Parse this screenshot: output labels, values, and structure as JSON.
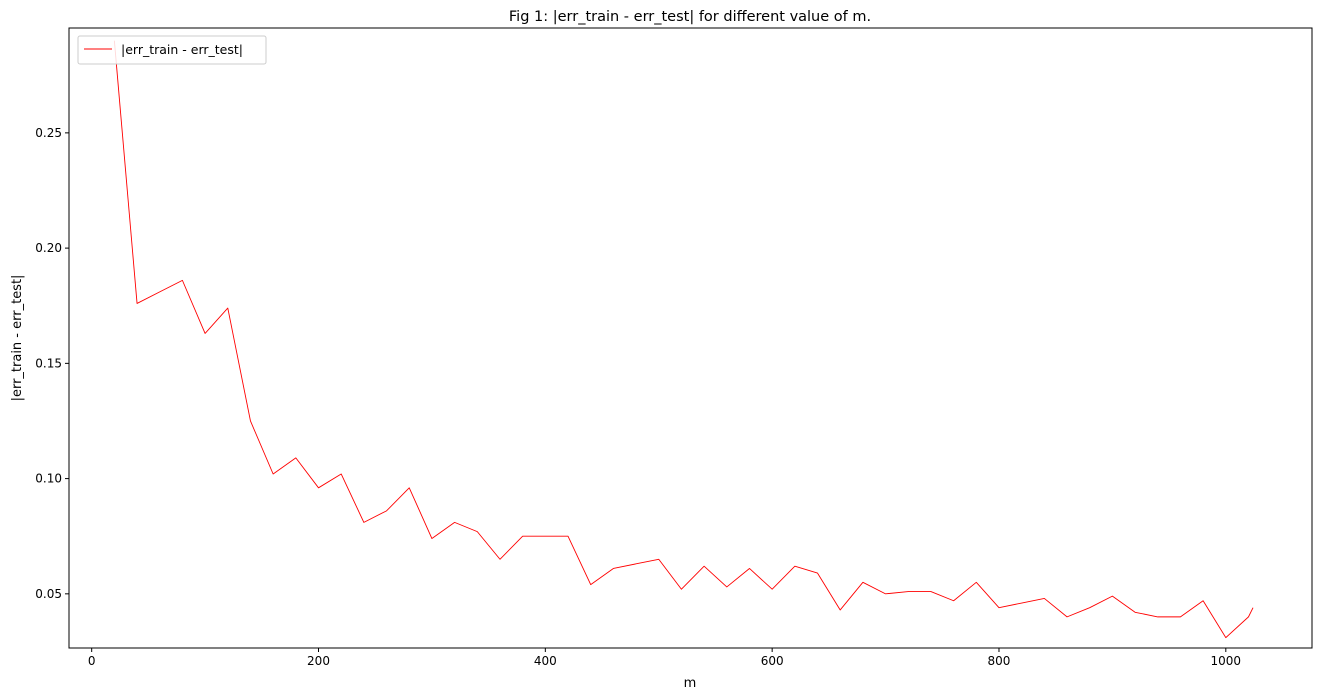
{
  "chart_data": {
    "type": "line",
    "title": "Fig 1: |err_train - err_test| for different value of m.",
    "xlabel": "m",
    "ylabel": "|err_train - err_test|",
    "xlim": [
      -20,
      1076
    ],
    "ylim": [
      0.0265,
      0.2955
    ],
    "xticks": [
      0,
      200,
      400,
      600,
      800,
      1000
    ],
    "yticks": [
      0.05,
      0.1,
      0.15,
      0.2,
      0.25
    ],
    "grid": false,
    "legend_position": "upper left",
    "series": [
      {
        "name": "|err_train - err_test|",
        "color": "#ff0000",
        "x": [
          20,
          40,
          60,
          80,
          100,
          120,
          140,
          160,
          180,
          200,
          220,
          240,
          260,
          280,
          300,
          320,
          340,
          360,
          380,
          400,
          420,
          440,
          460,
          480,
          500,
          520,
          540,
          560,
          580,
          600,
          620,
          640,
          660,
          680,
          700,
          720,
          740,
          760,
          780,
          800,
          820,
          840,
          860,
          880,
          900,
          920,
          940,
          960,
          980,
          1000,
          1020,
          1024
        ],
        "y": [
          0.29,
          0.176,
          0.181,
          0.186,
          0.163,
          0.174,
          0.125,
          0.102,
          0.109,
          0.096,
          0.102,
          0.081,
          0.086,
          0.096,
          0.074,
          0.081,
          0.077,
          0.065,
          0.075,
          0.075,
          0.075,
          0.054,
          0.061,
          0.063,
          0.065,
          0.052,
          0.062,
          0.053,
          0.061,
          0.052,
          0.062,
          0.059,
          0.043,
          0.055,
          0.05,
          0.051,
          0.051,
          0.047,
          0.055,
          0.044,
          0.046,
          0.048,
          0.04,
          0.044,
          0.049,
          0.042,
          0.04,
          0.04,
          0.047,
          0.031,
          0.04,
          0.044
        ]
      }
    ]
  }
}
